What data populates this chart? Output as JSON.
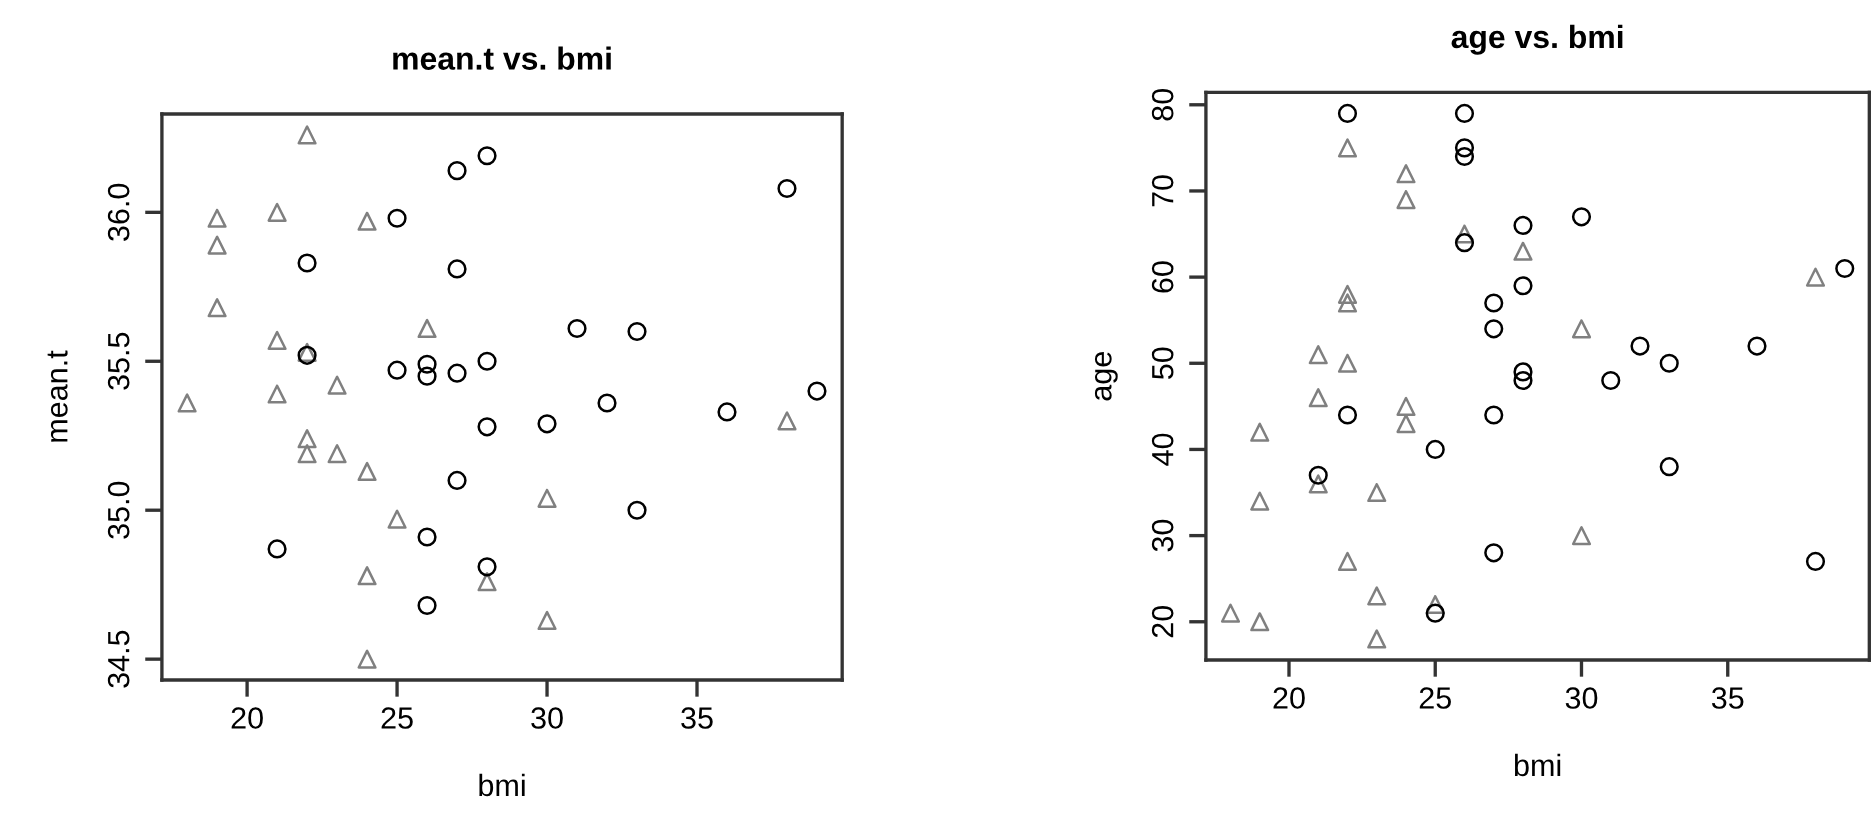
{
  "chart_data": [
    {
      "type": "scatter",
      "title": "mean.t vs. bmi",
      "xlabel": "bmi",
      "ylabel": "mean.t",
      "xlim": [
        17.16,
        39.84
      ],
      "ylim": [
        34.43,
        36.33
      ],
      "xticks": [
        20,
        25,
        30,
        35
      ],
      "yticks": [
        34.5,
        {
          "value": 35,
          "label": "35.0"
        },
        35.5,
        {
          "value": 36,
          "label": "36.0"
        }
      ],
      "grid": false,
      "legend": false,
      "series": [
        {
          "marker": "triangle",
          "color": "#808080",
          "x": [
            22,
            19,
            19,
            19,
            21,
            24,
            21,
            22,
            18,
            21,
            23,
            26,
            22,
            22,
            23,
            24,
            30,
            25,
            24,
            28,
            30,
            24,
            38
          ],
          "values": [
            36.26,
            35.98,
            35.89,
            35.68,
            36.0,
            35.97,
            35.57,
            35.53,
            35.36,
            35.39,
            35.42,
            35.61,
            35.24,
            35.19,
            35.19,
            35.13,
            35.04,
            34.97,
            34.78,
            34.76,
            34.63,
            34.5,
            35.3
          ]
        },
        {
          "marker": "circle",
          "color": "#000000",
          "x": [
            28,
            27,
            38,
            25,
            22,
            27,
            31,
            33,
            22,
            25,
            26,
            26,
            27,
            28,
            32,
            36,
            39,
            28,
            30,
            27,
            33,
            21,
            26,
            28,
            26
          ],
          "values": [
            36.19,
            36.14,
            36.08,
            35.98,
            35.83,
            35.81,
            35.61,
            35.6,
            35.52,
            35.47,
            35.49,
            35.45,
            35.46,
            35.5,
            35.36,
            35.33,
            35.4,
            35.28,
            35.29,
            35.1,
            35.0,
            34.87,
            34.91,
            34.81,
            34.68
          ]
        }
      ]
    },
    {
      "type": "scatter",
      "title": "age vs. bmi",
      "xlabel": "bmi",
      "ylabel": "age",
      "xlim": [
        17.16,
        39.84
      ],
      "ylim": [
        15.56,
        81.44
      ],
      "xticks": [
        20,
        25,
        30,
        35
      ],
      "yticks": [
        20,
        30,
        40,
        50,
        60,
        70,
        80
      ],
      "grid": false,
      "legend": false,
      "series": [
        {
          "marker": "triangle",
          "color": "#808080",
          "x": [
            18,
            19,
            19,
            19,
            21,
            21,
            21,
            22,
            22,
            22,
            22,
            22,
            23,
            23,
            23,
            24,
            24,
            24,
            24,
            25,
            26,
            28,
            30,
            30,
            38
          ],
          "values": [
            21,
            20,
            42,
            34,
            51,
            46,
            36,
            75,
            58,
            57,
            50,
            27,
            35,
            23,
            18,
            72,
            69,
            45,
            43,
            22,
            65,
            63,
            54,
            30,
            60
          ]
        },
        {
          "marker": "circle",
          "color": "#000000",
          "x": [
            22,
            26,
            26,
            26,
            26,
            28,
            30,
            28,
            27,
            27,
            28,
            28,
            32,
            31,
            33,
            36,
            39,
            22,
            27,
            25,
            33,
            21,
            27,
            25,
            38
          ],
          "values": [
            79,
            79,
            75,
            74,
            64,
            66,
            67,
            59,
            57,
            54,
            49,
            48,
            52,
            48,
            50,
            52,
            61,
            44,
            44,
            40,
            38,
            37,
            28,
            21,
            27
          ]
        }
      ]
    }
  ]
}
